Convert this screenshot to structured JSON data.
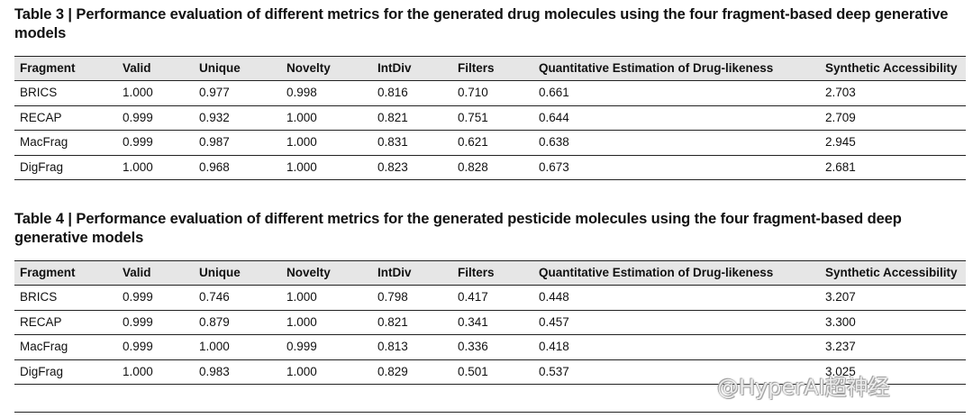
{
  "table3": {
    "caption_label": "Table 3 |",
    "caption_text": "Performance evaluation of different metrics for the generated drug molecules using the four fragment-based deep generative models",
    "headers": [
      "Fragment",
      "Valid",
      "Unique",
      "Novelty",
      "IntDiv",
      "Filters",
      "Quantitative Estimation of Drug-likeness",
      "Synthetic Accessibility"
    ],
    "rows": [
      [
        "BRICS",
        "1.000",
        "0.977",
        "0.998",
        "0.816",
        "0.710",
        "0.661",
        "2.703"
      ],
      [
        "RECAP",
        "0.999",
        "0.932",
        "1.000",
        "0.821",
        "0.751",
        "0.644",
        "2.709"
      ],
      [
        "MacFrag",
        "0.999",
        "0.987",
        "1.000",
        "0.831",
        "0.621",
        "0.638",
        "2.945"
      ],
      [
        "DigFrag",
        "1.000",
        "0.968",
        "1.000",
        "0.823",
        "0.828",
        "0.673",
        "2.681"
      ]
    ]
  },
  "table4": {
    "caption_label": "Table 4 |",
    "caption_text": "Performance evaluation of different metrics for the generated pesticide molecules using the four fragment-based deep generative models",
    "headers": [
      "Fragment",
      "Valid",
      "Unique",
      "Novelty",
      "IntDiv",
      "Filters",
      "Quantitative Estimation of Drug-likeness",
      "Synthetic Accessibility"
    ],
    "rows": [
      [
        "BRICS",
        "0.999",
        "0.746",
        "1.000",
        "0.798",
        "0.417",
        "0.448",
        "3.207"
      ],
      [
        "RECAP",
        "0.999",
        "0.879",
        "1.000",
        "0.821",
        "0.341",
        "0.457",
        "3.300"
      ],
      [
        "MacFrag",
        "0.999",
        "1.000",
        "0.999",
        "0.813",
        "0.336",
        "0.418",
        "3.237"
      ],
      [
        "DigFrag",
        "1.000",
        "0.983",
        "1.000",
        "0.829",
        "0.501",
        "0.537",
        "3.025"
      ]
    ]
  },
  "watermark": "@HyperAI超神经"
}
